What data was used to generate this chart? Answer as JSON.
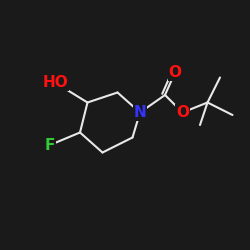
{
  "bg_color": "#1a1a1a",
  "bond_color": "#e8e8e8",
  "bond_width": 1.5,
  "atom_colors": {
    "N": "#3333ff",
    "O": "#ff1111",
    "F": "#33cc33",
    "HO": "#ff1111",
    "C": "#e8e8e8"
  },
  "font_size_atoms": 11,
  "font_size_small": 8,
  "xlim": [
    0,
    10
  ],
  "ylim": [
    0,
    10
  ]
}
